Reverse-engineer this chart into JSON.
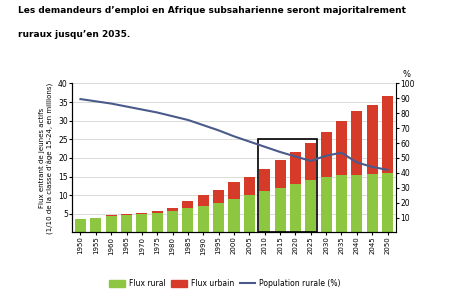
{
  "title_line1": "Les demandeurs d’emploi en Afrique subsaharienne seront majoritalrement",
  "title_line2": "ruraux jusqu’en 2035.",
  "years": [
    1950,
    1955,
    1960,
    1965,
    1970,
    1975,
    1980,
    1985,
    1990,
    1995,
    2000,
    2005,
    2010,
    2015,
    2020,
    2025,
    2030,
    2035,
    2040,
    2045,
    2050
  ],
  "rural": [
    3.5,
    3.8,
    4.3,
    4.7,
    5.0,
    5.3,
    5.8,
    6.5,
    7.0,
    8.0,
    9.0,
    10.0,
    11.0,
    12.0,
    13.0,
    14.0,
    15.0,
    15.5,
    15.5,
    15.8,
    16.0
  ],
  "urban": [
    0.2,
    0.2,
    0.3,
    0.3,
    0.3,
    0.5,
    0.8,
    2.0,
    3.0,
    3.5,
    4.5,
    5.0,
    6.0,
    7.5,
    8.5,
    10.0,
    12.0,
    14.5,
    17.0,
    18.5,
    20.5
  ],
  "pop_rural_pct": [
    89.5,
    88.0,
    86.5,
    84.5,
    82.5,
    80.5,
    78.0,
    75.5,
    72.0,
    68.5,
    64.5,
    61.0,
    57.5,
    54.0,
    51.0,
    48.0,
    51.5,
    53.5,
    47.0,
    44.0,
    42.0
  ],
  "color_rural": "#8DC641",
  "color_urban": "#D63B2A",
  "color_line": "#4A5A8A",
  "highlight_years_idx": [
    12,
    13,
    14,
    15
  ],
  "ylabel_left": "Flux entrant de jeunes actifs\n(1/10 de la classe d’âge 15-24, en millions)",
  "ylabel_right": "%",
  "ylim_left": [
    0,
    40
  ],
  "ylim_right": [
    0,
    100
  ],
  "yticks_left": [
    5,
    10,
    15,
    20,
    25,
    30,
    35,
    40
  ],
  "yticks_right": [
    10,
    20,
    30,
    40,
    50,
    60,
    70,
    80,
    90,
    100
  ],
  "legend_rural": "Flux rural",
  "legend_urban": "Flux urbain",
  "legend_line": "Population rurale (%)",
  "bg_color": "#FFFFFF"
}
